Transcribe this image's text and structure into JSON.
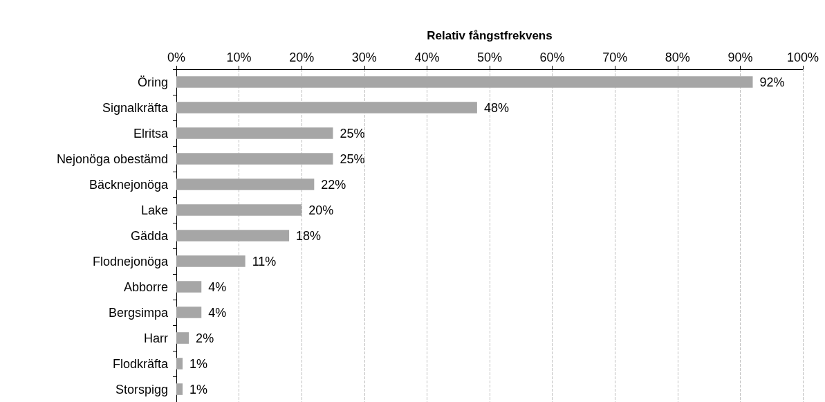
{
  "chart_data": {
    "type": "bar",
    "orientation": "horizontal",
    "xlabel": "Relativ fångstfrekvens",
    "categories": [
      "Öring",
      "Signalkräfta",
      "Elritsa",
      "Nejonöga obestämd",
      "Bäcknejonöga",
      "Lake",
      "Gädda",
      "Flodnejonöga",
      "Abborre",
      "Bergsimpa",
      "Harr",
      "Flodkräfta",
      "Storspigg"
    ],
    "values": [
      92,
      48,
      25,
      25,
      22,
      20,
      18,
      11,
      4,
      4,
      2,
      1,
      1
    ],
    "value_labels": [
      "92%",
      "48%",
      "25%",
      "25%",
      "22%",
      "20%",
      "18%",
      "11%",
      "4%",
      "4%",
      "2%",
      "1%",
      "1%"
    ],
    "color": "#a6a6a6",
    "xlim": [
      0,
      100
    ],
    "xticks": [
      {
        "value": 0,
        "label": "0%"
      },
      {
        "value": 10,
        "label": "10%"
      },
      {
        "value": 20,
        "label": "20%"
      },
      {
        "value": 30,
        "label": "30%"
      },
      {
        "value": 40,
        "label": "40%"
      },
      {
        "value": 50,
        "label": "50%"
      },
      {
        "value": 60,
        "label": "60%"
      },
      {
        "value": 70,
        "label": "70%"
      },
      {
        "value": 80,
        "label": "80%"
      },
      {
        "value": 90,
        "label": "90%"
      },
      {
        "value": 100,
        "label": "100%"
      }
    ],
    "grid": "x"
  }
}
